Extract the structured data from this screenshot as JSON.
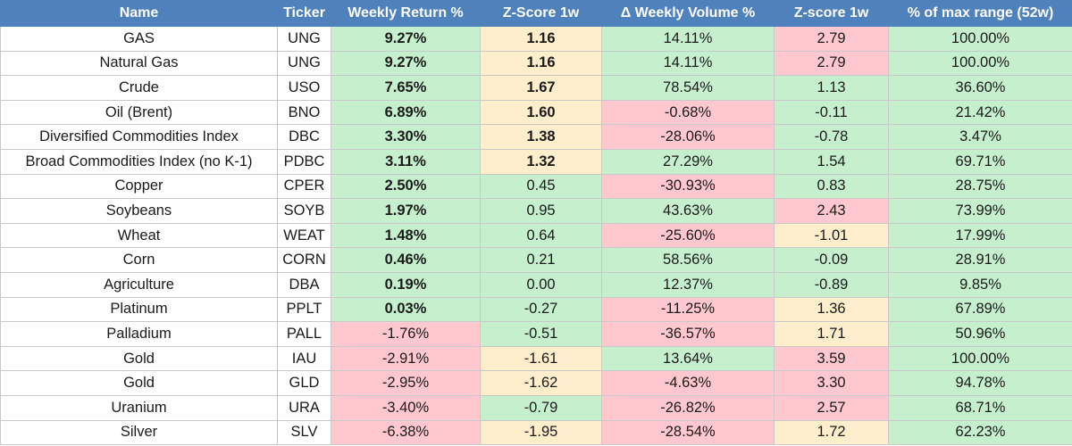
{
  "headers": [
    "Name",
    "Ticker",
    "Weekly Return %",
    "Z-Score 1w",
    "Δ Weekly Volume %",
    "Z-score 1w",
    "% of max range (52w)"
  ],
  "colors": {
    "header": "#4f81bd",
    "green": "#c6efce",
    "red": "#ffc7ce",
    "yellow": "#ffeecb"
  },
  "rows": [
    {
      "name": "GAS",
      "ticker": "UNG",
      "ret": "9.27%",
      "z1": "1.16",
      "vol": "14.11%",
      "z2": "2.79",
      "range": "100.00%"
    },
    {
      "name": "Natural Gas",
      "ticker": "UNG",
      "ret": "9.27%",
      "z1": "1.16",
      "vol": "14.11%",
      "z2": "2.79",
      "range": "100.00%"
    },
    {
      "name": "Crude",
      "ticker": "USO",
      "ret": "7.65%",
      "z1": "1.67",
      "vol": "78.54%",
      "z2": "1.13",
      "range": "36.60%"
    },
    {
      "name": "Oil (Brent)",
      "ticker": "BNO",
      "ret": "6.89%",
      "z1": "1.60",
      "vol": "-0.68%",
      "z2": "-0.11",
      "range": "21.42%"
    },
    {
      "name": "Diversified Commodities Index",
      "ticker": "DBC",
      "ret": "3.30%",
      "z1": "1.38",
      "vol": "-28.06%",
      "z2": "-0.78",
      "range": "3.47%"
    },
    {
      "name": "Broad Commodities Index (no K-1)",
      "ticker": "PDBC",
      "ret": "3.11%",
      "z1": "1.32",
      "vol": "27.29%",
      "z2": "1.54",
      "range": "69.71%"
    },
    {
      "name": "Copper",
      "ticker": "CPER",
      "ret": "2.50%",
      "z1": "0.45",
      "vol": "-30.93%",
      "z2": "0.83",
      "range": "28.75%"
    },
    {
      "name": "Soybeans",
      "ticker": "SOYB",
      "ret": "1.97%",
      "z1": "0.95",
      "vol": "43.63%",
      "z2": "2.43",
      "range": "73.99%"
    },
    {
      "name": "Wheat",
      "ticker": "WEAT",
      "ret": "1.48%",
      "z1": "0.64",
      "vol": "-25.60%",
      "z2": "-1.01",
      "range": "17.99%"
    },
    {
      "name": "Corn",
      "ticker": "CORN",
      "ret": "0.46%",
      "z1": "0.21",
      "vol": "58.56%",
      "z2": "-0.09",
      "range": "28.91%"
    },
    {
      "name": "Agriculture",
      "ticker": "DBA",
      "ret": "0.19%",
      "z1": "0.00",
      "vol": "12.37%",
      "z2": "-0.89",
      "range": "9.85%"
    },
    {
      "name": "Platinum",
      "ticker": "PPLT",
      "ret": "0.03%",
      "z1": "-0.27",
      "vol": "-11.25%",
      "z2": "1.36",
      "range": "67.89%"
    },
    {
      "name": "Palladium",
      "ticker": "PALL",
      "ret": "-1.76%",
      "z1": "-0.51",
      "vol": "-36.57%",
      "z2": "1.71",
      "range": "50.96%"
    },
    {
      "name": "Gold",
      "ticker": "IAU",
      "ret": "-2.91%",
      "z1": "-1.61",
      "vol": "13.64%",
      "z2": "3.59",
      "range": "100.00%"
    },
    {
      "name": "Gold",
      "ticker": "GLD",
      "ret": "-2.95%",
      "z1": "-1.62",
      "vol": "-4.63%",
      "z2": "3.30",
      "range": "94.78%"
    },
    {
      "name": "Uranium",
      "ticker": "URA",
      "ret": "-3.40%",
      "z1": "-0.79",
      "vol": "-26.82%",
      "z2": "2.57",
      "range": "68.71%"
    },
    {
      "name": "Silver",
      "ticker": "SLV",
      "ret": "-6.38%",
      "z1": "-1.95",
      "vol": "-28.54%",
      "z2": "1.72",
      "range": "62.23%"
    }
  ]
}
